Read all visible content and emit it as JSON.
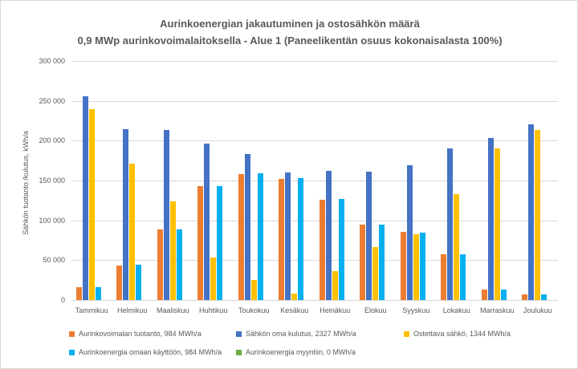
{
  "title": {
    "line1": "Aurinkoenergian jakautuminen ja ostosähkön määrä",
    "line2": "0,9 MWp aurinkovoimalaitoksella - Alue 1 (Paneelikentän osuus kokonaisalasta 100%)"
  },
  "y_axis": {
    "label": "Sähkön tuotanto /kulutus, kWh/a",
    "tick_labels_top_to_bottom": [
      "300 000",
      "250 000",
      "200 000",
      "150 000",
      "100 000",
      "50 000",
      "0"
    ]
  },
  "chart_data": {
    "type": "bar",
    "title": "Aurinkoenergian jakautuminen ja ostosähkön määrä",
    "subtitle": "0,9 MWp aurinkovoimalaitoksella - Alue 1 (Paneelikentän osuus kokonaisalasta 100%)",
    "categories": [
      "Tammikuu",
      "Helmikuu",
      "Maaliskuu",
      "Huhtikuu",
      "Toukokuu",
      "Kesäkuu",
      "Heinäkuu",
      "Elokuu",
      "Syyskuu",
      "Lokakuu",
      "Marraskuu",
      "Joulukuu"
    ],
    "series": [
      {
        "name": "Aurinkovoimalan tuotanto, 984 MWh/a",
        "color": "#ED7D31",
        "values": [
          16000,
          43000,
          89000,
          143000,
          158000,
          152000,
          126000,
          95000,
          86000,
          57000,
          13000,
          7000
        ]
      },
      {
        "name": "Sähkön oma kulutus, 2327 MWh/a",
        "color": "#4472C4",
        "values": [
          256000,
          214000,
          213000,
          196000,
          183000,
          160000,
          162000,
          161000,
          169000,
          190000,
          203000,
          220000
        ]
      },
      {
        "name": "Ostettava sähkö, 1344 MWh/a",
        "color": "#FFC000",
        "values": [
          240000,
          171000,
          124000,
          53000,
          25000,
          8000,
          36000,
          66000,
          83000,
          133000,
          190000,
          213000
        ]
      },
      {
        "name": "Aurinkoenergia omaan käyttöön, 984 MWh/a",
        "color": "#00B0F0",
        "values": [
          16000,
          44000,
          89000,
          143000,
          159000,
          153000,
          127000,
          95000,
          85000,
          57000,
          13000,
          7000
        ]
      },
      {
        "name": "Aurinkoenergia myyntiin, 0 MWh/a",
        "color": "#70AD47",
        "values": [
          0,
          0,
          0,
          0,
          0,
          0,
          0,
          0,
          0,
          0,
          0,
          0
        ]
      }
    ],
    "ylabel": "Sähkön tuotanto /kulutus, kWh/a",
    "xlabel": "",
    "ylim": [
      0,
      300000
    ],
    "ytick_interval": 50000,
    "grid": "horizontal",
    "legend_position": "bottom",
    "legend_rows": [
      [
        0,
        1,
        2
      ],
      [
        3,
        4
      ]
    ]
  },
  "colors": {
    "gridline": "#D9D9D9",
    "text": "#595959"
  }
}
